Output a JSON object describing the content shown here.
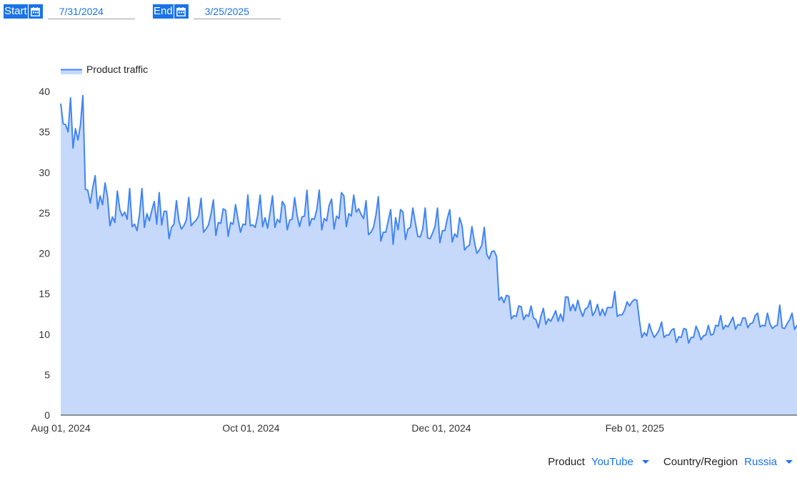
{
  "filters": {
    "start_label": "Start",
    "start_value": "7/31/2024",
    "end_label": "End",
    "end_value": "3/25/2025"
  },
  "controls": {
    "product_label": "Product",
    "product_value": "YouTube",
    "region_label": "Country/Region",
    "region_value": "Russia"
  },
  "colors": {
    "line": "#4285f4",
    "fill": "#c6d9fb",
    "accent": "#1a73e8"
  },
  "icons": [
    "calendar-icon",
    "dropdown-arrow-icon"
  ],
  "chart_data": {
    "type": "area",
    "legend": {
      "label": "Product traffic",
      "position": "top-left"
    },
    "x_start": "2024-08-01",
    "x_end": "2025-03-25",
    "x_ticks": [
      "Aug 01, 2024",
      "Oct 01, 2024",
      "Dec 01, 2024",
      "Feb 01, 2025"
    ],
    "ylim": [
      0,
      40
    ],
    "y_ticks": [
      0,
      5,
      10,
      15,
      20,
      25,
      30,
      35,
      40
    ],
    "grid": false,
    "series": [
      {
        "name": "Product traffic",
        "values": [
          38.5,
          36.0,
          35.9,
          35.0,
          39.2,
          33.0,
          35.4,
          34.0,
          35.8,
          39.5,
          27.9,
          27.8,
          26.2,
          28.1,
          29.6,
          25.5,
          27.1,
          26.0,
          28.7,
          27.0,
          23.4,
          24.5,
          23.8,
          27.7,
          25.4,
          24.6,
          25.1,
          24.2,
          28.0,
          23.3,
          23.6,
          22.8,
          24.8,
          28.0,
          23.2,
          24.9,
          24.0,
          25.3,
          26.4,
          23.6,
          27.5,
          23.5,
          25.2,
          25.2,
          21.8,
          23.2,
          23.6,
          26.5,
          24.0,
          23.0,
          23.4,
          24.1,
          26.9,
          23.4,
          23.8,
          24.1,
          24.6,
          26.8,
          22.6,
          23.0,
          23.5,
          24.8,
          26.6,
          22.2,
          23.8,
          23.7,
          25.5,
          25.3,
          22.1,
          23.8,
          23.6,
          26.0,
          24.2,
          22.6,
          23.6,
          23.5,
          27.2,
          23.4,
          23.5,
          23.2,
          24.7,
          27.2,
          23.3,
          24.4,
          23.1,
          25.0,
          27.1,
          23.2,
          24.2,
          23.8,
          26.4,
          25.9,
          22.9,
          24.1,
          24.2,
          26.9,
          24.7,
          23.3,
          24.5,
          24.6,
          27.8,
          23.4,
          24.3,
          24.2,
          25.4,
          27.8,
          22.9,
          24.3,
          24.0,
          25.9,
          26.7,
          23.0,
          24.6,
          24.3,
          27.5,
          27.1,
          23.3,
          24.9,
          24.6,
          27.2,
          25.1,
          25.5,
          24.8,
          24.3,
          26.5,
          22.3,
          22.6,
          23.2,
          24.7,
          27.0,
          21.5,
          22.6,
          22.6,
          24.0,
          25.4,
          21.1,
          24.4,
          22.9,
          25.4,
          25.1,
          21.7,
          23.0,
          23.2,
          25.6,
          23.8,
          22.1,
          22.0,
          23.0,
          25.6,
          21.9,
          21.8,
          22.5,
          23.3,
          25.6,
          21.3,
          22.8,
          22.8,
          24.3,
          25.4,
          21.4,
          22.4,
          22.0,
          24.4,
          23.4,
          20.4,
          20.8,
          21.0,
          23.3,
          21.4,
          20.0,
          20.4,
          21.0,
          23.2,
          19.9,
          19.3,
          20.2,
          20.3,
          19.6,
          14.2,
          14.6,
          13.9,
          14.8,
          14.7,
          11.9,
          12.3,
          12.2,
          13.5,
          13.4,
          11.8,
          12.4,
          12.2,
          13.5,
          12.0,
          11.8,
          10.8,
          12.2,
          13.2,
          11.2,
          11.9,
          11.6,
          12.2,
          12.9,
          11.6,
          12.5,
          11.6,
          14.6,
          14.6,
          12.9,
          13.7,
          12.9,
          14.2,
          13.0,
          12.2,
          13.1,
          13.3,
          14.2,
          12.3,
          12.8,
          13.7,
          12.3,
          13.1,
          12.3,
          13.3,
          13.3,
          13.3,
          15.3,
          12.2,
          12.4,
          12.4,
          13.0,
          14.0,
          13.5,
          14.0,
          14.3,
          14.2,
          11.7,
          9.6,
          10.2,
          9.8,
          11.3,
          10.3,
          9.6,
          10.0,
          10.5,
          11.5,
          9.6,
          9.9,
          9.9,
          10.5,
          10.7,
          9.0,
          9.7,
          9.6,
          10.7,
          10.6,
          8.9,
          9.6,
          9.6,
          11.0,
          10.3,
          9.3,
          9.8,
          9.9,
          11.1,
          9.9,
          10.0,
          11.1,
          11.0,
          12.3,
          10.6,
          11.1,
          10.9,
          11.5,
          12.1,
          10.6,
          11.2,
          11.1,
          12.0,
          12.0,
          10.8,
          11.3,
          11.4,
          12.3,
          12.6,
          10.9,
          11.1,
          11.0,
          12.6,
          11.3,
          10.7,
          11.0,
          11.1,
          13.6,
          10.8,
          10.7,
          11.3,
          11.8,
          12.6,
          10.6,
          11.1
        ]
      }
    ]
  }
}
